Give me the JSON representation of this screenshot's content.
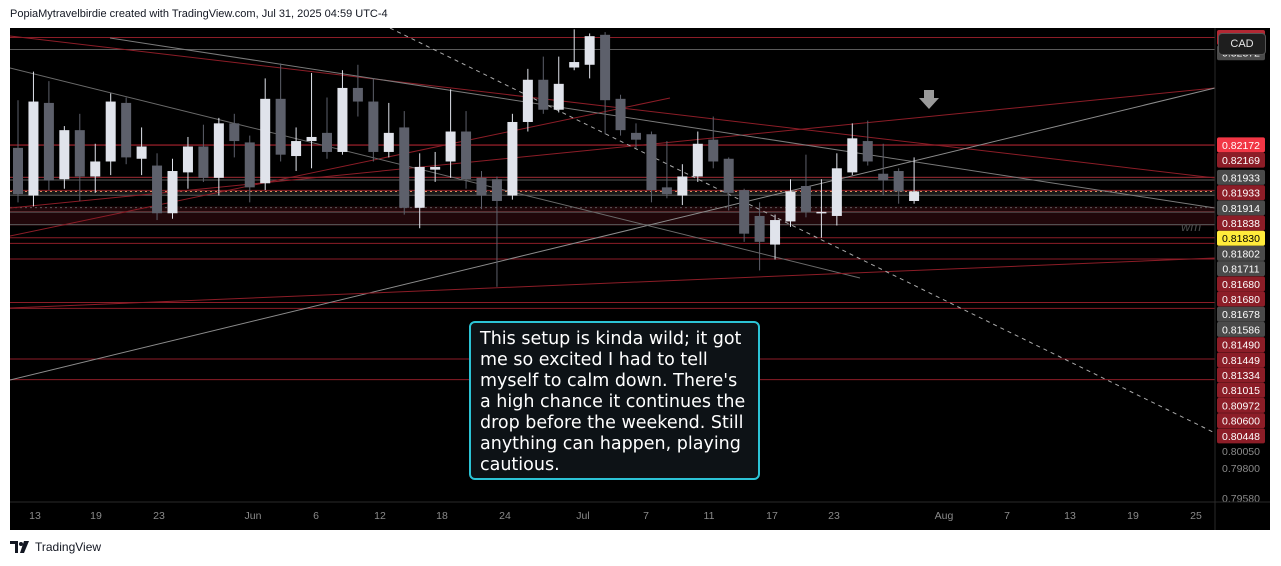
{
  "header": {
    "attribution": "PopiaMytravelbirdie created with TradingView.com, Jul 31, 2025 04:59 UTC-4"
  },
  "toolbar": {
    "currency": "CAD"
  },
  "note": {
    "text": "This setup is kinda wild; it got me so excited I had to tell myself to calm down. There's a high chance it continues the drop before the weekend. Still anything can happen, playing cautious."
  },
  "footer": {
    "brand": "TradingView"
  },
  "watermark": "wm",
  "colors": {
    "background": "#000000",
    "up": "#e0e3eb",
    "down": "#5d606b",
    "accent_line": "#b22833",
    "current": "#ffeb3b",
    "note_border": "#2cc3d5"
  },
  "chart_data": {
    "type": "candlestick",
    "ylim": [
      0.7955,
      0.8303
    ],
    "x_ticks": [
      "13",
      "19",
      "23",
      "Jun",
      "6",
      "12",
      "18",
      "24",
      "Jul",
      "7",
      "11",
      "17",
      "23",
      "Aug",
      "7",
      "13",
      "19",
      "25"
    ],
    "price_labels": [
      {
        "text": "0.82960",
        "value": 0.8296,
        "bg": "#b22833",
        "fg": "#ffffff"
      },
      {
        "text": "0.82872",
        "value": 0.82872,
        "bg": "#4a4a4a",
        "fg": "#ffffff"
      },
      {
        "text": "0.82172",
        "value": 0.82172,
        "bg": "#f23645",
        "fg": "#ffffff"
      },
      {
        "text": "0.82169",
        "value": 0.82169,
        "bg": "#8c1d27",
        "fg": "#ffffff"
      },
      {
        "text": "0.81933",
        "value": 0.81933,
        "bg": "#4a4a4a",
        "fg": "#ffffff"
      },
      {
        "text": "0.81933",
        "value": 0.81933,
        "bg": "#8c1d27",
        "fg": "#ffffff"
      },
      {
        "text": "0.81914",
        "value": 0.81914,
        "bg": "#4a4a4a",
        "fg": "#ffffff"
      },
      {
        "text": "0.81838",
        "value": 0.81838,
        "bg": "#8c1d27",
        "fg": "#ffffff"
      },
      {
        "text": "0.81830",
        "value": 0.8183,
        "bg": "#ffeb3b",
        "fg": "#000000"
      },
      {
        "text": "0.81802",
        "value": 0.81802,
        "bg": "#4a4a4a",
        "fg": "#ffffff"
      },
      {
        "text": "0.81711",
        "value": 0.81711,
        "bg": "#4a4a4a",
        "fg": "#ffffff"
      },
      {
        "text": "0.81680",
        "value": 0.8168,
        "bg": "#8c1d27",
        "fg": "#ffffff"
      },
      {
        "text": "0.81680",
        "value": 0.8168,
        "bg": "#8c1d27",
        "fg": "#ffffff"
      },
      {
        "text": "0.81678",
        "value": 0.81678,
        "bg": "#4a4a4a",
        "fg": "#ffffff"
      },
      {
        "text": "0.81586",
        "value": 0.81586,
        "bg": "#4a4a4a",
        "fg": "#ffffff"
      },
      {
        "text": "0.81490",
        "value": 0.8149,
        "bg": "#8c1d27",
        "fg": "#ffffff"
      },
      {
        "text": "0.81449",
        "value": 0.81449,
        "bg": "#8c1d27",
        "fg": "#ffffff"
      },
      {
        "text": "0.81334",
        "value": 0.81334,
        "bg": "#8c1d27",
        "fg": "#ffffff"
      },
      {
        "text": "0.81015",
        "value": 0.81015,
        "bg": "#8c1d27",
        "fg": "#ffffff"
      },
      {
        "text": "0.80972",
        "value": 0.80972,
        "bg": "#8c1d27",
        "fg": "#ffffff"
      },
      {
        "text": "0.80600",
        "value": 0.806,
        "bg": "#8c1d27",
        "fg": "#ffffff"
      },
      {
        "text": "0.80448",
        "value": 0.80448,
        "bg": "#8c1d27",
        "fg": "#ffffff"
      },
      {
        "text": "0.80050",
        "value": 0.8005,
        "bg": "none",
        "fg": "#8a8a8a"
      },
      {
        "text": "0.79800",
        "value": 0.798,
        "bg": "none",
        "fg": "#8a8a8a"
      },
      {
        "text": "0.79580",
        "value": 0.7958,
        "bg": "none",
        "fg": "#8a8a8a"
      }
    ],
    "candles": [
      {
        "d": "May 12",
        "o": 0.8215,
        "h": 0.825,
        "l": 0.8175,
        "c": 0.8181
      },
      {
        "d": "May 13",
        "o": 0.818,
        "h": 0.8271,
        "l": 0.8172,
        "c": 0.8249
      },
      {
        "d": "May 14",
        "o": 0.8248,
        "h": 0.8264,
        "l": 0.8184,
        "c": 0.8191
      },
      {
        "d": "May 15",
        "o": 0.8192,
        "h": 0.8231,
        "l": 0.8185,
        "c": 0.8228
      },
      {
        "d": "May 16",
        "o": 0.8228,
        "h": 0.824,
        "l": 0.8176,
        "c": 0.8194
      },
      {
        "d": "May 19",
        "o": 0.8194,
        "h": 0.8218,
        "l": 0.8182,
        "c": 0.8205
      },
      {
        "d": "May 20",
        "o": 0.8205,
        "h": 0.8255,
        "l": 0.8195,
        "c": 0.8249
      },
      {
        "d": "May 21",
        "o": 0.8248,
        "h": 0.8252,
        "l": 0.8203,
        "c": 0.8208
      },
      {
        "d": "May 22",
        "o": 0.8207,
        "h": 0.823,
        "l": 0.8195,
        "c": 0.8216
      },
      {
        "d": "May 23",
        "o": 0.8202,
        "h": 0.8211,
        "l": 0.8162,
        "c": 0.8167
      },
      {
        "d": "May 26",
        "o": 0.8167,
        "h": 0.8207,
        "l": 0.8163,
        "c": 0.8198
      },
      {
        "d": "May 27",
        "o": 0.8197,
        "h": 0.8223,
        "l": 0.8185,
        "c": 0.8216
      },
      {
        "d": "May 28",
        "o": 0.8216,
        "h": 0.8232,
        "l": 0.819,
        "c": 0.8193
      },
      {
        "d": "May 29",
        "o": 0.8193,
        "h": 0.8237,
        "l": 0.818,
        "c": 0.8233
      },
      {
        "d": "May 30",
        "o": 0.8233,
        "h": 0.824,
        "l": 0.8208,
        "c": 0.822
      },
      {
        "d": "Jun 2",
        "o": 0.8219,
        "h": 0.8224,
        "l": 0.8175,
        "c": 0.8186
      },
      {
        "d": "Jun 3",
        "o": 0.8189,
        "h": 0.8266,
        "l": 0.8184,
        "c": 0.8251
      },
      {
        "d": "Jun 4",
        "o": 0.8251,
        "h": 0.8277,
        "l": 0.8205,
        "c": 0.821
      },
      {
        "d": "Jun 5",
        "o": 0.8209,
        "h": 0.823,
        "l": 0.8198,
        "c": 0.822
      },
      {
        "d": "Jun 6",
        "o": 0.822,
        "h": 0.827,
        "l": 0.82,
        "c": 0.8223
      },
      {
        "d": "Jun 9",
        "o": 0.8226,
        "h": 0.8252,
        "l": 0.8207,
        "c": 0.8212
      },
      {
        "d": "Jun 10",
        "o": 0.8212,
        "h": 0.8272,
        "l": 0.821,
        "c": 0.8259
      },
      {
        "d": "Jun 11",
        "o": 0.8259,
        "h": 0.8276,
        "l": 0.8238,
        "c": 0.8249
      },
      {
        "d": "Jun 12",
        "o": 0.8249,
        "h": 0.8266,
        "l": 0.8205,
        "c": 0.8212
      },
      {
        "d": "Jun 13",
        "o": 0.8212,
        "h": 0.8248,
        "l": 0.8208,
        "c": 0.8226
      },
      {
        "d": "Jun 16",
        "o": 0.823,
        "h": 0.8242,
        "l": 0.8166,
        "c": 0.8171
      },
      {
        "d": "Jun 17",
        "o": 0.8171,
        "h": 0.8211,
        "l": 0.8156,
        "c": 0.8201
      },
      {
        "d": "Jun 18",
        "o": 0.8199,
        "h": 0.8212,
        "l": 0.819,
        "c": 0.8201
      },
      {
        "d": "Jun 19",
        "o": 0.8205,
        "h": 0.8258,
        "l": 0.8193,
        "c": 0.8227
      },
      {
        "d": "Jun 20",
        "o": 0.8227,
        "h": 0.8242,
        "l": 0.8185,
        "c": 0.8192
      },
      {
        "d": "Jun 23",
        "o": 0.8193,
        "h": 0.8198,
        "l": 0.817,
        "c": 0.818
      },
      {
        "d": "Jun 24",
        "o": 0.8192,
        "h": 0.8194,
        "l": 0.8113,
        "c": 0.8176
      },
      {
        "d": "Jun 25",
        "o": 0.818,
        "h": 0.824,
        "l": 0.8177,
        "c": 0.8234
      },
      {
        "d": "Jun 26",
        "o": 0.8234,
        "h": 0.8273,
        "l": 0.8227,
        "c": 0.8265
      },
      {
        "d": "Jun 27",
        "o": 0.8265,
        "h": 0.8282,
        "l": 0.824,
        "c": 0.8243
      },
      {
        "d": "Jun 30",
        "o": 0.8243,
        "h": 0.8282,
        "l": 0.8241,
        "c": 0.8262
      },
      {
        "d": "Jul 1",
        "o": 0.8274,
        "h": 0.8302,
        "l": 0.8272,
        "c": 0.8278
      },
      {
        "d": "Jul 2",
        "o": 0.8276,
        "h": 0.8299,
        "l": 0.8266,
        "c": 0.8297
      },
      {
        "d": "Jul 3",
        "o": 0.8298,
        "h": 0.83,
        "l": 0.8225,
        "c": 0.825
      },
      {
        "d": "Jul 4",
        "o": 0.8251,
        "h": 0.8254,
        "l": 0.8224,
        "c": 0.8228
      },
      {
        "d": "Jul 7",
        "o": 0.8226,
        "h": 0.8233,
        "l": 0.8215,
        "c": 0.8221
      },
      {
        "d": "Jul 8",
        "o": 0.8225,
        "h": 0.8227,
        "l": 0.8175,
        "c": 0.8184
      },
      {
        "d": "Jul 9",
        "o": 0.8186,
        "h": 0.822,
        "l": 0.8178,
        "c": 0.8181
      },
      {
        "d": "Jul 10",
        "o": 0.818,
        "h": 0.8203,
        "l": 0.8173,
        "c": 0.8194
      },
      {
        "d": "Jul 11",
        "o": 0.8194,
        "h": 0.8227,
        "l": 0.819,
        "c": 0.8218
      },
      {
        "d": "Jul 14",
        "o": 0.8221,
        "h": 0.8238,
        "l": 0.82,
        "c": 0.8205
      },
      {
        "d": "Jul 15",
        "o": 0.8207,
        "h": 0.8208,
        "l": 0.8169,
        "c": 0.8182
      },
      {
        "d": "Jul 16",
        "o": 0.8184,
        "h": 0.8185,
        "l": 0.8146,
        "c": 0.8152
      },
      {
        "d": "Jul 17",
        "o": 0.8165,
        "h": 0.8175,
        "l": 0.8125,
        "c": 0.8146
      },
      {
        "d": "Jul 18",
        "o": 0.8144,
        "h": 0.8166,
        "l": 0.8133,
        "c": 0.8162
      },
      {
        "d": "Jul 21",
        "o": 0.8161,
        "h": 0.8192,
        "l": 0.8157,
        "c": 0.8183
      },
      {
        "d": "Jul 22",
        "o": 0.8187,
        "h": 0.821,
        "l": 0.8164,
        "c": 0.8168
      },
      {
        "d": "Jul 23",
        "o": 0.8168,
        "h": 0.8192,
        "l": 0.8149,
        "c": 0.8168
      },
      {
        "d": "Jul 24",
        "o": 0.8165,
        "h": 0.8211,
        "l": 0.8158,
        "c": 0.82
      },
      {
        "d": "Jul 25",
        "o": 0.8197,
        "h": 0.8233,
        "l": 0.8195,
        "c": 0.8222
      },
      {
        "d": "Jul 28",
        "o": 0.822,
        "h": 0.8235,
        "l": 0.8202,
        "c": 0.8205
      },
      {
        "d": "Jul 29",
        "o": 0.8196,
        "h": 0.8218,
        "l": 0.818,
        "c": 0.8191
      },
      {
        "d": "Jul 30",
        "o": 0.8198,
        "h": 0.82,
        "l": 0.8174,
        "c": 0.8183
      },
      {
        "d": "Jul 31",
        "o": 0.8176,
        "h": 0.8208,
        "l": 0.8174,
        "c": 0.8183
      }
    ]
  }
}
